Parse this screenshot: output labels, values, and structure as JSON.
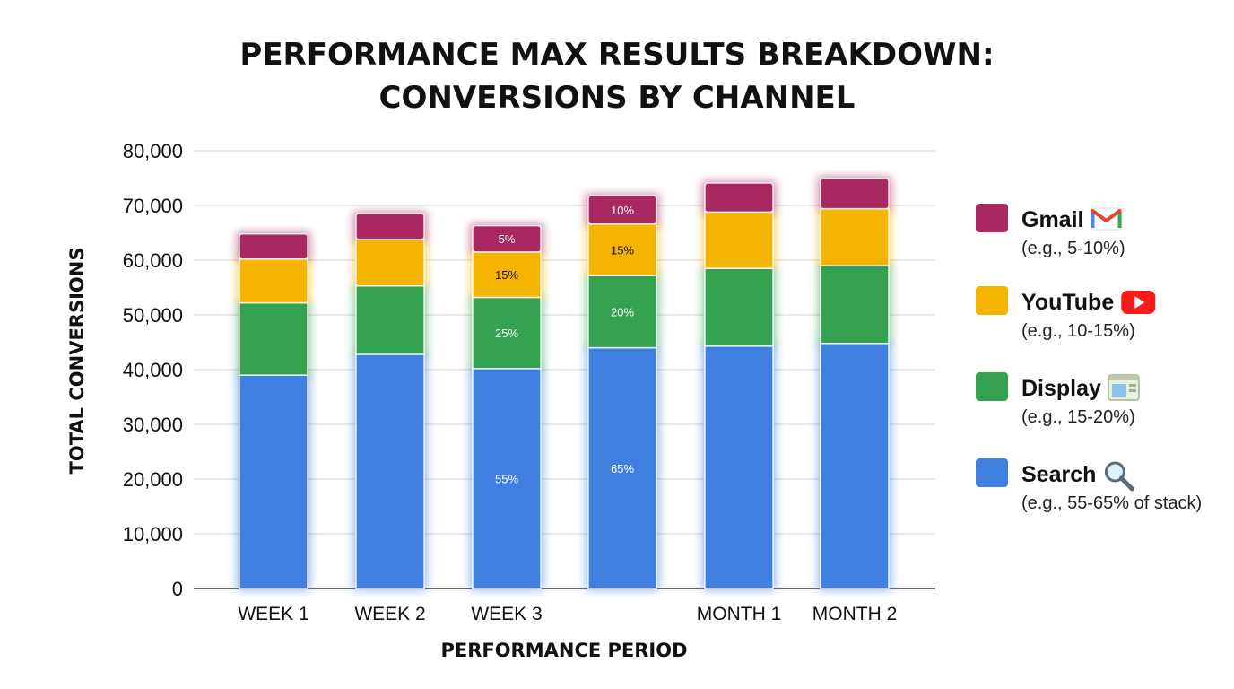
{
  "chart_data": {
    "type": "bar",
    "stacked": true,
    "title_lines": [
      "PERFORMANCE MAX RESULTS BREAKDOWN:",
      "CONVERSIONS BY CHANNEL"
    ],
    "xlabel": "PERFORMANCE PERIOD",
    "ylabel": "TOTAL CONVERSIONS",
    "ylim": [
      0,
      80000
    ],
    "yticks": [
      0,
      10000,
      20000,
      30000,
      40000,
      50000,
      60000,
      70000,
      80000
    ],
    "ytick_labels": [
      "0",
      "10,000",
      "20,000",
      "30,000",
      "40,000",
      "50,000",
      "60,000",
      "70,000",
      "80,000"
    ],
    "grid": true,
    "legend_position": "right",
    "categories": [
      "WEEK 1",
      "WEEK 2",
      "WEEK 3",
      "",
      "MONTH 1",
      "MONTH 2"
    ],
    "series": [
      {
        "name": "Search",
        "color": "#3f7fe0",
        "values": [
          39000,
          42800,
          40200,
          44000,
          44300,
          44800
        ]
      },
      {
        "name": "Display",
        "color": "#34a251",
        "values": [
          13200,
          12500,
          13000,
          13200,
          14200,
          14200
        ]
      },
      {
        "name": "YouTube",
        "color": "#f5b400",
        "values": [
          8000,
          8500,
          8300,
          9400,
          10300,
          10400
        ]
      },
      {
        "name": "Gmail",
        "color": "#a8285f",
        "values": [
          4600,
          4700,
          4800,
          5200,
          5300,
          5500
        ]
      }
    ],
    "segment_labels": [
      {
        "category": 2,
        "series": 0,
        "text": "55%"
      },
      {
        "category": 2,
        "series": 1,
        "text": "25%"
      },
      {
        "category": 2,
        "series": 2,
        "text": "15%"
      },
      {
        "category": 2,
        "series": 3,
        "text": "5%"
      },
      {
        "category": 3,
        "series": 0,
        "text": "65%"
      },
      {
        "category": 3,
        "series": 1,
        "text": "20%"
      },
      {
        "category": 3,
        "series": 2,
        "text": "15%"
      },
      {
        "category": 3,
        "series": 3,
        "text": "10%"
      }
    ],
    "legend": [
      {
        "name": "Gmail",
        "note": "(e.g., 5-10%)",
        "color": "#a8285f",
        "icon": "gmail-icon"
      },
      {
        "name": "YouTube",
        "note": "(e.g., 10-15%)",
        "color": "#f5b400",
        "icon": "youtube-icon"
      },
      {
        "name": "Display",
        "note": "(e.g., 15-20%)",
        "color": "#34a251",
        "icon": "display-icon"
      },
      {
        "name": "Search",
        "note": "(e.g., 55-65% of stack)",
        "color": "#3f7fe0",
        "icon": "search-icon"
      }
    ]
  }
}
